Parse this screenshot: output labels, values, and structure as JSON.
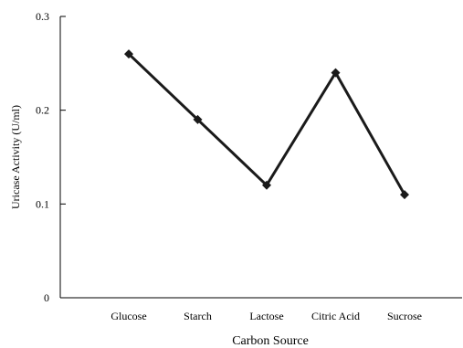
{
  "chart_data": {
    "type": "line",
    "categories": [
      "Glucose",
      "Starch",
      "Lactose",
      "Citric Acid",
      "Sucrose"
    ],
    "values": [
      0.26,
      0.19,
      0.12,
      0.24,
      0.11
    ],
    "xlabel": "Carbon Source",
    "ylabel": "Uricase Activity (U/ml)",
    "ylim": [
      0,
      0.3
    ],
    "yticks": [
      0,
      0.1,
      0.2,
      0.3
    ],
    "ytick_labels": [
      "0",
      "0.1",
      "0.2",
      "0.3"
    ],
    "grid": false,
    "legend": false,
    "marker": "diamond",
    "line_color": "#1a1a1a"
  }
}
